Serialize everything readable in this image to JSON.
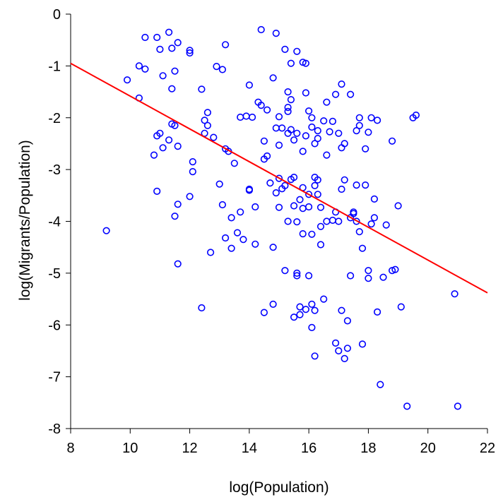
{
  "chart_data": {
    "type": "scatter",
    "title": "",
    "xlabel": "log(Population)",
    "ylabel": "log(Migrants/Population)",
    "xlim": [
      8,
      22
    ],
    "ylim": [
      -8,
      0
    ],
    "xticks": [
      8,
      10,
      12,
      14,
      16,
      18,
      20,
      22
    ],
    "yticks": [
      0,
      -1,
      -2,
      -3,
      -4,
      -5,
      -6,
      -7,
      -8
    ],
    "grid": false,
    "legend": "none",
    "marker": "open-circle",
    "point_color": "#0000ff",
    "line_color": "#ff0000",
    "fit_line": {
      "x": [
        8,
        22
      ],
      "y": [
        -0.95,
        -5.38
      ]
    },
    "points": [
      [
        9.2,
        -4.18
      ],
      [
        9.9,
        -1.27
      ],
      [
        10.3,
        -1.0
      ],
      [
        10.3,
        -1.62
      ],
      [
        10.5,
        -0.45
      ],
      [
        10.5,
        -1.06
      ],
      [
        10.8,
        -2.72
      ],
      [
        10.9,
        -2.35
      ],
      [
        10.9,
        -3.42
      ],
      [
        10.9,
        -0.45
      ],
      [
        11.0,
        -0.68
      ],
      [
        11.0,
        -2.3
      ],
      [
        11.1,
        -1.19
      ],
      [
        11.1,
        -2.58
      ],
      [
        11.3,
        -0.35
      ],
      [
        11.3,
        -2.43
      ],
      [
        11.4,
        -0.66
      ],
      [
        11.4,
        -1.44
      ],
      [
        11.4,
        -2.12
      ],
      [
        11.5,
        -3.9
      ],
      [
        11.5,
        -2.15
      ],
      [
        11.5,
        -1.1
      ],
      [
        11.6,
        -0.55
      ],
      [
        11.6,
        -2.55
      ],
      [
        11.6,
        -3.67
      ],
      [
        11.6,
        -4.82
      ],
      [
        12.0,
        -0.7
      ],
      [
        12.0,
        -0.75
      ],
      [
        12.0,
        -3.52
      ],
      [
        12.1,
        -2.85
      ],
      [
        12.1,
        -3.04
      ],
      [
        12.4,
        -5.67
      ],
      [
        12.4,
        -1.45
      ],
      [
        12.5,
        -2.05
      ],
      [
        12.5,
        -2.3
      ],
      [
        12.6,
        -1.9
      ],
      [
        12.6,
        -2.15
      ],
      [
        12.7,
        -4.6
      ],
      [
        12.8,
        -2.38
      ],
      [
        12.9,
        -1.01
      ],
      [
        13.0,
        -3.28
      ],
      [
        13.1,
        -1.07
      ],
      [
        13.1,
        -3.68
      ],
      [
        13.2,
        -0.59
      ],
      [
        13.2,
        -2.6
      ],
      [
        13.2,
        -4.32
      ],
      [
        13.3,
        -2.65
      ],
      [
        13.4,
        -3.93
      ],
      [
        13.4,
        -4.52
      ],
      [
        13.5,
        -2.88
      ],
      [
        13.6,
        -4.22
      ],
      [
        13.7,
        -1.99
      ],
      [
        13.7,
        -3.82
      ],
      [
        13.8,
        -4.35
      ],
      [
        13.9,
        -1.97
      ],
      [
        14.0,
        -1.37
      ],
      [
        14.0,
        -3.38
      ],
      [
        14.0,
        -3.4
      ],
      [
        14.1,
        -1.99
      ],
      [
        14.2,
        -3.72
      ],
      [
        14.2,
        -4.44
      ],
      [
        14.3,
        -1.7
      ],
      [
        14.4,
        -0.3
      ],
      [
        14.4,
        -1.76
      ],
      [
        14.5,
        -2.45
      ],
      [
        14.5,
        -2.8
      ],
      [
        14.5,
        -5.76
      ],
      [
        14.6,
        -1.85
      ],
      [
        14.6,
        -2.74
      ],
      [
        14.7,
        -3.26
      ],
      [
        14.8,
        -1.23
      ],
      [
        14.8,
        -4.5
      ],
      [
        14.8,
        -5.6
      ],
      [
        14.9,
        -0.37
      ],
      [
        14.9,
        -2.2
      ],
      [
        14.9,
        -3.45
      ],
      [
        15.0,
        -1.98
      ],
      [
        15.0,
        -2.53
      ],
      [
        15.0,
        -3.17
      ],
      [
        15.0,
        -3.73
      ],
      [
        15.1,
        -2.2
      ],
      [
        15.1,
        -3.37
      ],
      [
        15.2,
        -0.68
      ],
      [
        15.2,
        -3.31
      ],
      [
        15.2,
        -4.95
      ],
      [
        15.3,
        -1.5
      ],
      [
        15.3,
        -1.8
      ],
      [
        15.3,
        -1.88
      ],
      [
        15.3,
        -2.3
      ],
      [
        15.3,
        -4.0
      ],
      [
        15.4,
        -0.95
      ],
      [
        15.4,
        -1.65
      ],
      [
        15.4,
        -2.23
      ],
      [
        15.4,
        -3.19
      ],
      [
        15.5,
        -2.43
      ],
      [
        15.5,
        -3.15
      ],
      [
        15.5,
        -3.7
      ],
      [
        15.5,
        -5.85
      ],
      [
        15.6,
        -0.72
      ],
      [
        15.6,
        -2.3
      ],
      [
        15.6,
        -4.01
      ],
      [
        15.6,
        -5.0
      ],
      [
        15.6,
        -5.05
      ],
      [
        15.7,
        -3.58
      ],
      [
        15.7,
        -5.65
      ],
      [
        15.7,
        -5.8
      ],
      [
        15.8,
        -0.93
      ],
      [
        15.8,
        -2.65
      ],
      [
        15.8,
        -3.35
      ],
      [
        15.8,
        -3.75
      ],
      [
        15.8,
        -4.24
      ],
      [
        15.9,
        -0.95
      ],
      [
        15.9,
        -1.52
      ],
      [
        15.9,
        -2.35
      ],
      [
        15.9,
        -5.7
      ],
      [
        16.0,
        -1.87
      ],
      [
        16.0,
        -3.48
      ],
      [
        16.0,
        -3.72
      ],
      [
        16.0,
        -5.05
      ],
      [
        16.1,
        -2.0
      ],
      [
        16.1,
        -2.18
      ],
      [
        16.1,
        -4.25
      ],
      [
        16.1,
        -5.6
      ],
      [
        16.1,
        -6.05
      ],
      [
        16.2,
        -2.5
      ],
      [
        16.2,
        -3.15
      ],
      [
        16.2,
        -3.31
      ],
      [
        16.2,
        -5.72
      ],
      [
        16.2,
        -6.6
      ],
      [
        16.3,
        -2.25
      ],
      [
        16.3,
        -2.4
      ],
      [
        16.3,
        -3.2
      ],
      [
        16.3,
        -3.48
      ],
      [
        16.4,
        -3.73
      ],
      [
        16.4,
        -4.1
      ],
      [
        16.4,
        -4.45
      ],
      [
        16.5,
        -2.06
      ],
      [
        16.5,
        -5.5
      ],
      [
        16.6,
        -1.7
      ],
      [
        16.6,
        -2.72
      ],
      [
        16.6,
        -4.0
      ],
      [
        16.7,
        -2.27
      ],
      [
        16.8,
        -2.07
      ],
      [
        16.8,
        -3.98
      ],
      [
        16.9,
        -1.55
      ],
      [
        16.9,
        -3.82
      ],
      [
        16.9,
        -6.35
      ],
      [
        17.0,
        -2.3
      ],
      [
        17.0,
        -4.0
      ],
      [
        17.0,
        -6.5
      ],
      [
        17.1,
        -1.35
      ],
      [
        17.1,
        -2.58
      ],
      [
        17.1,
        -3.38
      ],
      [
        17.1,
        -5.72
      ],
      [
        17.2,
        -2.5
      ],
      [
        17.2,
        -3.2
      ],
      [
        17.2,
        -6.65
      ],
      [
        17.3,
        -5.92
      ],
      [
        17.3,
        -6.45
      ],
      [
        17.4,
        -1.55
      ],
      [
        17.4,
        -3.93
      ],
      [
        17.4,
        -5.05
      ],
      [
        17.5,
        -3.82
      ],
      [
        17.5,
        -3.85
      ],
      [
        17.6,
        -2.25
      ],
      [
        17.6,
        -3.3
      ],
      [
        17.6,
        -4.0
      ],
      [
        17.7,
        -2.0
      ],
      [
        17.7,
        -2.15
      ],
      [
        17.7,
        -4.2
      ],
      [
        17.8,
        -4.52
      ],
      [
        17.8,
        -6.37
      ],
      [
        17.9,
        -3.3
      ],
      [
        17.9,
        -2.6
      ],
      [
        18.0,
        -2.28
      ],
      [
        18.0,
        -4.95
      ],
      [
        18.0,
        -5.1
      ],
      [
        18.1,
        -2.0
      ],
      [
        18.1,
        -4.05
      ],
      [
        18.2,
        -3.93
      ],
      [
        18.2,
        -3.57
      ],
      [
        18.3,
        -2.05
      ],
      [
        18.3,
        -5.75
      ],
      [
        18.4,
        -7.15
      ],
      [
        18.5,
        -5.08
      ],
      [
        18.6,
        -4.07
      ],
      [
        18.8,
        -2.45
      ],
      [
        18.8,
        -4.95
      ],
      [
        18.9,
        -4.93
      ],
      [
        19.0,
        -3.7
      ],
      [
        19.1,
        -5.65
      ],
      [
        19.3,
        -7.57
      ],
      [
        19.5,
        -2.0
      ],
      [
        19.6,
        -1.95
      ],
      [
        20.9,
        -5.4
      ],
      [
        21.0,
        -7.57
      ]
    ]
  }
}
